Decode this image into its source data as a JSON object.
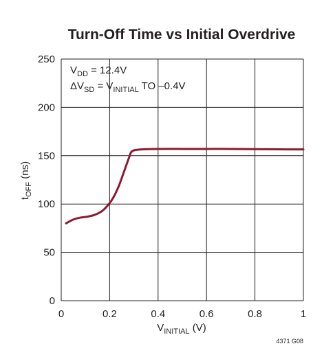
{
  "chart_data": {
    "type": "line",
    "title": "Turn-Off Time vs Initial Overdrive",
    "xlabel": {
      "main": "V",
      "sub": "INITIAL",
      "suffix": " (V)"
    },
    "ylabel": {
      "main": "t",
      "sub": "OFF",
      "suffix": " (ns)"
    },
    "xlim": [
      0,
      1
    ],
    "ylim": [
      0,
      250
    ],
    "xticks": [
      0,
      0.2,
      0.4,
      0.6,
      0.8,
      1
    ],
    "xtick_labels": [
      "0",
      "0.2",
      "0.4",
      "0.6",
      "0.8",
      "1"
    ],
    "yticks": [
      0,
      50,
      100,
      150,
      200,
      250
    ],
    "ytick_labels": [
      "0",
      "50",
      "100",
      "150",
      "200",
      "250"
    ],
    "grid": true,
    "line_color": "#8b1a2f",
    "annotations": [
      [
        {
          "t": "V",
          "sub": false
        },
        {
          "t": "DD",
          "sub": true
        },
        {
          "t": " = 12.4V",
          "sub": false
        }
      ],
      [
        {
          "t": "ΔV",
          "sub": false
        },
        {
          "t": "SD",
          "sub": true
        },
        {
          "t": " = V",
          "sub": false
        },
        {
          "t": "INITIAL",
          "sub": true
        },
        {
          "t": " TO –0.4V",
          "sub": false
        }
      ]
    ],
    "series": [
      {
        "x": [
          0.02,
          0.05,
          0.08,
          0.11,
          0.14,
          0.17,
          0.2,
          0.22,
          0.24,
          0.26,
          0.28,
          0.29,
          0.31,
          0.35,
          0.4,
          0.5,
          0.6,
          0.7,
          0.8,
          0.9,
          1.0
        ],
        "y": [
          80,
          84,
          86,
          87,
          89,
          93,
          101,
          109,
          120,
          134,
          148,
          154,
          156,
          156.7,
          157,
          157,
          157,
          157,
          156.8,
          156.6,
          156.5
        ]
      }
    ]
  },
  "figure_id": "4371 G08"
}
